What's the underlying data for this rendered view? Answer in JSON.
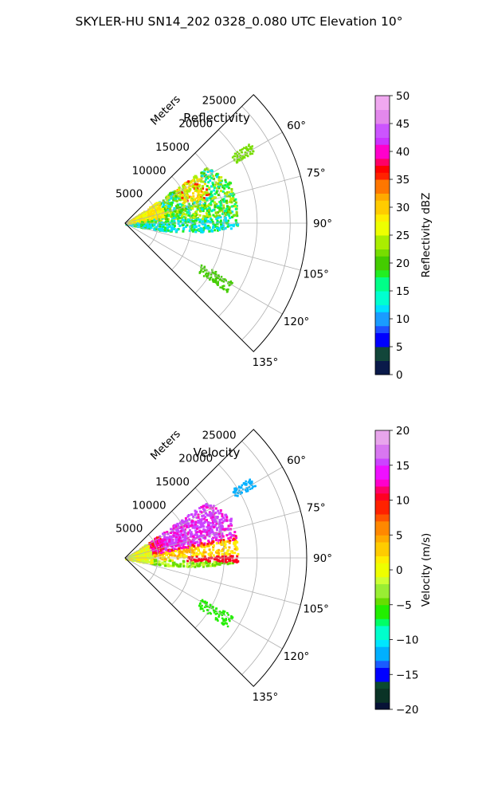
{
  "figure": {
    "suptitle": "SKYLER-HU  SN14_202  0328_0.080 UTC Elevation 10°"
  },
  "chart_data": [
    {
      "type": "polar-sector",
      "title": "Reflectivity",
      "radial_label": "Meters",
      "radial_ticks": [
        5000,
        10000,
        15000,
        20000,
        25000
      ],
      "radial_tick_labels": [
        "5000",
        "10000",
        "15000",
        "20000",
        "25000"
      ],
      "azimuth_range_deg": [
        45,
        135
      ],
      "azimuth_ticks_deg": [
        60,
        75,
        90,
        105,
        120,
        135
      ],
      "azimuth_tick_labels": [
        "60°",
        "75°",
        "90°",
        "105°",
        "120°",
        "135°"
      ],
      "grid": true,
      "colorbar": {
        "label": "Reflectivity dBZ",
        "range": [
          0,
          50
        ],
        "ticks": [
          0,
          5,
          10,
          15,
          20,
          25,
          30,
          35,
          40,
          45,
          50
        ],
        "tick_labels": [
          "0",
          "5",
          "10",
          "15",
          "20",
          "25",
          "30",
          "35",
          "40",
          "45",
          "50"
        ]
      }
    },
    {
      "type": "polar-sector",
      "title": "Velocity",
      "radial_label": "Meters",
      "radial_ticks": [
        5000,
        10000,
        15000,
        20000,
        25000
      ],
      "radial_tick_labels": [
        "5000",
        "10000",
        "15000",
        "20000",
        "25000"
      ],
      "azimuth_range_deg": [
        45,
        135
      ],
      "azimuth_ticks_deg": [
        60,
        75,
        90,
        105,
        120,
        135
      ],
      "azimuth_tick_labels": [
        "60°",
        "75°",
        "90°",
        "105°",
        "120°",
        "135°"
      ],
      "grid": true,
      "colorbar": {
        "label": "Velocity (m/s)",
        "range": [
          -20,
          20
        ],
        "ticks": [
          -20,
          -15,
          -10,
          -5,
          0,
          5,
          10,
          15,
          20
        ],
        "tick_labels": [
          "−20",
          "−15",
          "−10",
          "−5",
          "0",
          "5",
          "10",
          "15",
          "20"
        ]
      }
    }
  ]
}
